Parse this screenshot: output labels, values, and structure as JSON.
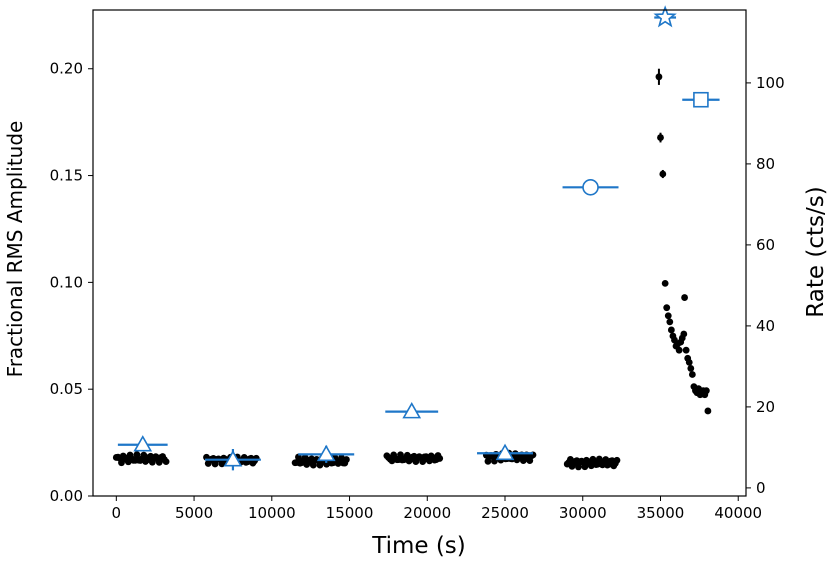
{
  "chart_data": {
    "type": "scatter",
    "xlabel": "Time (s)",
    "ylabel_left": "Fractional RMS Amplitude",
    "ylabel_right": "Rate (cts/s)",
    "xlim": [
      -1500,
      40500
    ],
    "ylim_left": [
      0.0,
      0.2275
    ],
    "ylim_right": [
      -2,
      118
    ],
    "x_ticks": [
      0,
      5000,
      10000,
      15000,
      20000,
      25000,
      30000,
      35000,
      40000
    ],
    "x_tick_labels": [
      "0",
      "5000",
      "10000",
      "15000",
      "20000",
      "25000",
      "30000",
      "35000",
      "40000"
    ],
    "y_left_ticks": [
      0.0,
      0.05,
      0.1,
      0.15,
      0.2
    ],
    "y_left_tick_labels": [
      "0.00",
      "0.05",
      "0.10",
      "0.15",
      "0.20"
    ],
    "y_right_ticks": [
      0,
      20,
      40,
      60,
      80,
      100
    ],
    "y_right_tick_labels": [
      "0",
      "20",
      "40",
      "60",
      "80",
      "100"
    ],
    "grid": false,
    "colors": {
      "rms": "#1f77c8",
      "rate": "#000000"
    },
    "rms_points": [
      {
        "x": 1700,
        "xerr": 1600,
        "y": 0.024,
        "yerr": 0.003,
        "marker": "triangle"
      },
      {
        "x": 7500,
        "xerr": 1800,
        "y": 0.017,
        "yerr": 0.005,
        "marker": "triangle"
      },
      {
        "x": 13500,
        "xerr": 1800,
        "y": 0.0195,
        "yerr": 0.004,
        "marker": "triangle"
      },
      {
        "x": 19000,
        "xerr": 1700,
        "y": 0.0395,
        "yerr": 0.003,
        "marker": "triangle"
      },
      {
        "x": 25000,
        "xerr": 1800,
        "y": 0.02,
        "yerr": 0.003,
        "marker": "triangle"
      },
      {
        "x": 30500,
        "xerr": 1800,
        "y": 0.1445,
        "yerr": 0.003,
        "marker": "circle"
      },
      {
        "x": 35300,
        "xerr": 700,
        "y": 0.224,
        "yerr": 0.002,
        "marker": "star"
      },
      {
        "x": 37600,
        "xerr": 1200,
        "y": 0.1855,
        "yerr": 0.001,
        "marker": "square"
      }
    ],
    "rate_segments": [
      {
        "x_start": 0,
        "x_end": 3200,
        "n": 30,
        "base": 7.2,
        "noise": 0.8
      },
      {
        "x_start": 5800,
        "x_end": 9000,
        "n": 30,
        "base": 6.8,
        "noise": 0.7
      },
      {
        "x_start": 11500,
        "x_end": 14800,
        "n": 32,
        "base": 6.6,
        "noise": 0.8
      },
      {
        "x_start": 17400,
        "x_end": 20800,
        "n": 32,
        "base": 7.3,
        "noise": 0.7
      },
      {
        "x_start": 23800,
        "x_end": 26800,
        "n": 30,
        "base": 7.6,
        "noise": 0.8
      },
      {
        "x_start": 29000,
        "x_end": 32200,
        "n": 32,
        "base": 6.2,
        "noise": 0.8
      }
    ],
    "rate_points_flare": [
      {
        "x": 34900,
        "y": 101.5,
        "yerr": 2.0
      },
      {
        "x": 35000,
        "y": 86.5,
        "yerr": 1.2
      },
      {
        "x": 35150,
        "y": 77.5,
        "yerr": 1.0
      },
      {
        "x": 35300,
        "y": 50.5
      },
      {
        "x": 35400,
        "y": 44.5
      },
      {
        "x": 35500,
        "y": 42.5
      },
      {
        "x": 35600,
        "y": 41.0
      },
      {
        "x": 35700,
        "y": 39.0
      },
      {
        "x": 35800,
        "y": 37.5
      },
      {
        "x": 35900,
        "y": 36.5
      },
      {
        "x": 36000,
        "y": 35.0
      },
      {
        "x": 36100,
        "y": 35.5
      },
      {
        "x": 36200,
        "y": 34.0
      },
      {
        "x": 36300,
        "y": 36.0
      },
      {
        "x": 36400,
        "y": 37.0
      },
      {
        "x": 36500,
        "y": 38.0
      },
      {
        "x": 36550,
        "y": 47.0
      },
      {
        "x": 36650,
        "y": 34.0
      },
      {
        "x": 36750,
        "y": 32.0
      },
      {
        "x": 36850,
        "y": 31.0
      },
      {
        "x": 36950,
        "y": 29.5
      },
      {
        "x": 37050,
        "y": 28.0
      },
      {
        "x": 37150,
        "y": 25.0
      },
      {
        "x": 37250,
        "y": 24.0
      },
      {
        "x": 37350,
        "y": 23.5
      },
      {
        "x": 37450,
        "y": 24.5
      },
      {
        "x": 37550,
        "y": 23.0
      },
      {
        "x": 37650,
        "y": 23.5
      },
      {
        "x": 37750,
        "y": 24.0
      },
      {
        "x": 37850,
        "y": 23.0
      },
      {
        "x": 37950,
        "y": 24.0
      },
      {
        "x": 38050,
        "y": 19.0
      }
    ]
  }
}
